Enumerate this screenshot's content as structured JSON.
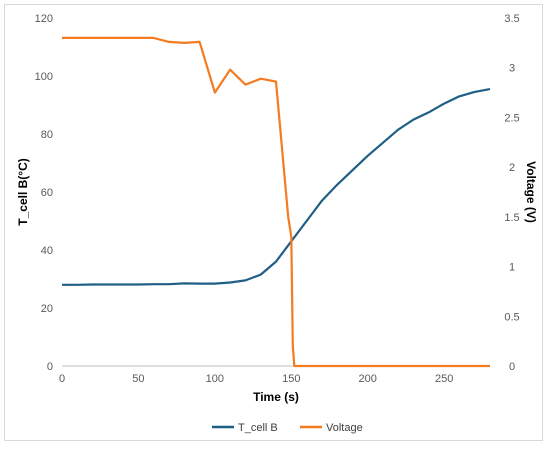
{
  "chart_data": {
    "type": "line",
    "xlabel": "Time (s)",
    "ylabel_left": "T_cell B(°C)",
    "ylabel_right": "Voltage (V)",
    "xlim": [
      0,
      280
    ],
    "ylim_left": [
      0,
      120
    ],
    "ylim_right": [
      0,
      3.5
    ],
    "x_ticks": [
      "0",
      "50",
      "100",
      "150",
      "200",
      "250"
    ],
    "y_left_ticks": [
      "0",
      "20",
      "40",
      "60",
      "80",
      "100",
      "120"
    ],
    "y_right_ticks": [
      "0",
      "0.5",
      "1",
      "1.5",
      "2",
      "2.5",
      "3",
      "3.5"
    ],
    "grid": false,
    "legend_position": "bottom",
    "series": [
      {
        "name": "T_cell B",
        "axis": "left",
        "color": "#1f5f86",
        "x": [
          0,
          10,
          20,
          30,
          40,
          50,
          60,
          70,
          80,
          90,
          100,
          110,
          120,
          130,
          140,
          150,
          160,
          170,
          180,
          190,
          200,
          210,
          220,
          230,
          240,
          250,
          260,
          270,
          280
        ],
        "y": [
          28,
          28,
          28.1,
          28.1,
          28.1,
          28.1,
          28.2,
          28.2,
          28.5,
          28.4,
          28.4,
          28.8,
          29.5,
          31.5,
          36,
          43,
          50,
          57,
          62.5,
          67.5,
          72.5,
          77,
          81.5,
          85,
          87.5,
          90.5,
          93,
          94.5,
          95.5
        ]
      },
      {
        "name": "Voltage",
        "axis": "right",
        "color": "#f47b20",
        "x": [
          0,
          10,
          20,
          30,
          40,
          50,
          60,
          70,
          80,
          90,
          100,
          110,
          120,
          130,
          140,
          148,
          150,
          151,
          152,
          155,
          170,
          200,
          250,
          280
        ],
        "y": [
          3.3,
          3.3,
          3.3,
          3.3,
          3.3,
          3.3,
          3.3,
          3.26,
          3.25,
          3.26,
          2.75,
          2.98,
          2.83,
          2.89,
          2.86,
          1.5,
          1.3,
          0.2,
          0,
          0,
          0,
          0,
          0,
          0
        ]
      }
    ]
  }
}
